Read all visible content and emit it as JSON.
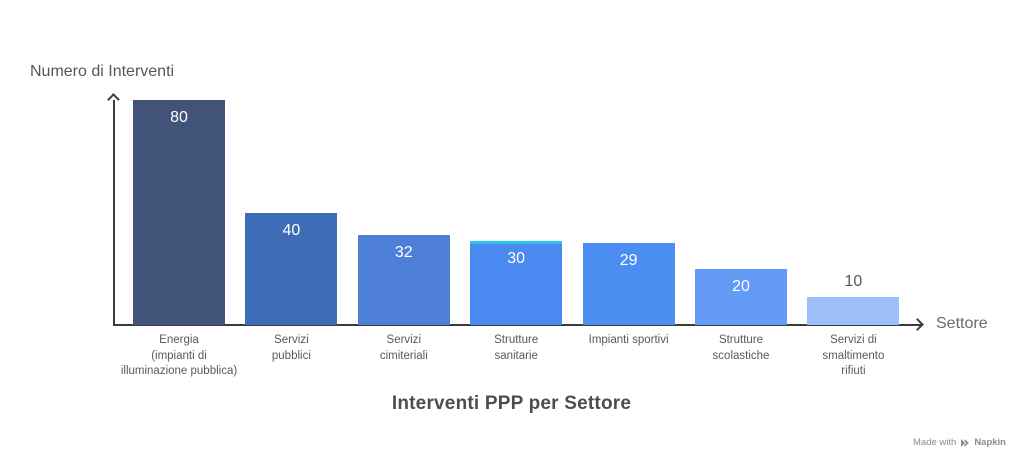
{
  "chart_data": {
    "type": "bar",
    "title": "Interventi PPP per Settore",
    "xlabel": "Settore",
    "ylabel": "Numero di Interventi",
    "categories": [
      "Energia\n(impianti di\nilluminazione pubblica)",
      "Servizi\npubblici",
      "Servizi\ncimiteriali",
      "Strutture\nsanitarie",
      "Impianti sportivi",
      "Strutture\nscolastiche",
      "Servizi di\nsmaltimento\nrifiuti"
    ],
    "values": [
      80,
      40,
      32,
      30,
      29,
      20,
      10
    ],
    "bar_colors": [
      "#425379",
      "#3E6CB5",
      "#4E7FD6",
      "#4A89EF",
      "#4C8DF2",
      "#649BF7",
      "#9DBFFA"
    ],
    "value_label_color_inside": "#FFFFFF",
    "value_label_color_outside": "#595959",
    "highlight_index": 3,
    "highlight_color": "#27C4E8",
    "ylim": [
      0,
      80
    ],
    "grid": false,
    "legend": "none"
  },
  "watermark": {
    "prefix": "Made with",
    "brand": "Napkin"
  },
  "colors": {
    "background": "#FFFFFF",
    "axis": "#3C3C3C",
    "tick_label": "#595959",
    "axis_label": "#5E5E5E",
    "title": "#4D4D4D",
    "watermark": "#8C8C8C"
  }
}
